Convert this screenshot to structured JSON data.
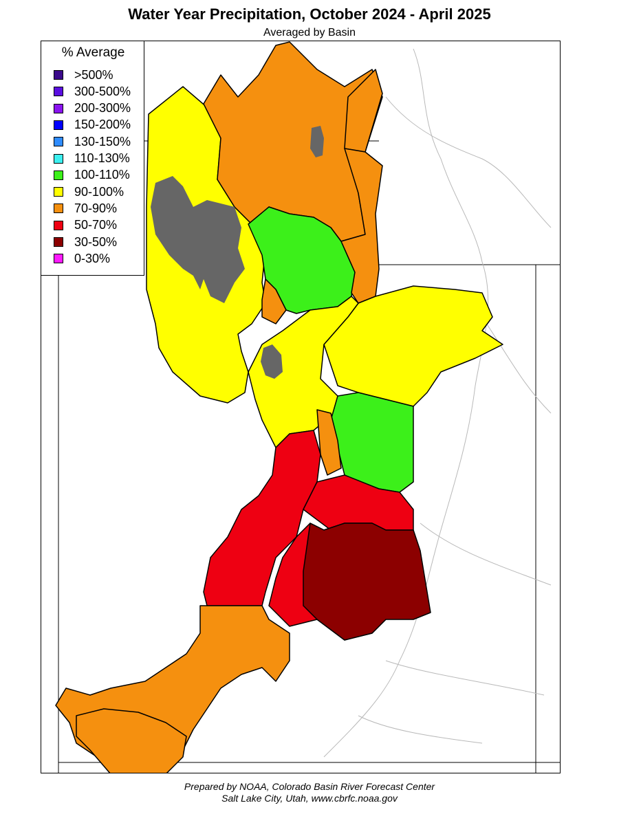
{
  "header": {
    "title": "Water Year Precipitation, October 2024 - April 2025",
    "subtitle": "Averaged by Basin"
  },
  "legend": {
    "title": "% Average",
    "items": [
      {
        "label": ">500%",
        "color": "#3b0a8a"
      },
      {
        "label": "300-500%",
        "color": "#5a0ee0"
      },
      {
        "label": "200-300%",
        "color": "#8a14f0"
      },
      {
        "label": "150-200%",
        "color": "#0000ff"
      },
      {
        "label": "130-150%",
        "color": "#2f8cff"
      },
      {
        "label": "110-130%",
        "color": "#3cf0f0"
      },
      {
        "label": "100-110%",
        "color": "#3cf01a"
      },
      {
        "label": "90-100%",
        "color": "#ffff00"
      },
      {
        "label": "70-90%",
        "color": "#f5900f"
      },
      {
        "label": "50-70%",
        "color": "#ee0012"
      },
      {
        "label": "30-50%",
        "color": "#8c0000"
      },
      {
        "label": "0-30%",
        "color": "#ff1aff"
      }
    ]
  },
  "map": {
    "basins": [
      {
        "category": "70-90%"
      },
      {
        "category": "90-100%"
      },
      {
        "category": "70-90%"
      },
      {
        "category": "100-110%"
      },
      {
        "category": "70-90%"
      },
      {
        "category": "70-90%"
      },
      {
        "category": "90-100%"
      },
      {
        "category": "90-100%"
      },
      {
        "category": "70-90%"
      },
      {
        "category": "100-110%"
      },
      {
        "category": "70-90%"
      },
      {
        "category": "50-70%"
      },
      {
        "category": "50-70%"
      },
      {
        "category": "30-50%"
      }
    ],
    "lake_color": "#666666"
  },
  "footer": {
    "line1": "Prepared by NOAA, Colorado Basin River Forecast Center",
    "line2": "Salt Lake City, Utah, www.cbrfc.noaa.gov"
  }
}
